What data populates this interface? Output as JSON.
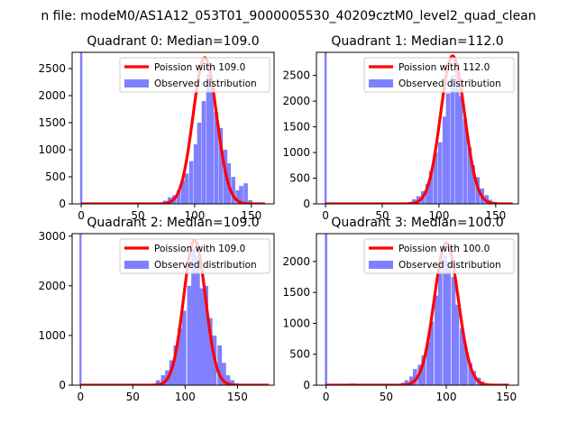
{
  "figure": {
    "suptitle": "n file: modeM0/AS1A12_053T01_9000005530_40209cztM0_level2_quad_clean"
  },
  "colors": {
    "bars": "#8080ff",
    "curve": "#ff0000",
    "axes": "#000000"
  },
  "chart_data": [
    {
      "type": "bar+line",
      "title": "Quadrant 0: Median=109.0",
      "median": 109.0,
      "legend": [
        "Poission with 109.0",
        "Observed distribution"
      ],
      "legend_loc": "upper right",
      "xlim": [
        -8,
        170
      ],
      "ylim": [
        0,
        2800
      ],
      "xticks": [
        0,
        50,
        100,
        150
      ],
      "yticks": [
        0,
        500,
        1000,
        1500,
        2000,
        2500
      ],
      "spike": {
        "x": 0,
        "value": 2800
      },
      "bar_width": 3.7,
      "bars": [
        [
          70,
          20
        ],
        [
          74,
          60
        ],
        [
          78,
          120
        ],
        [
          82,
          160
        ],
        [
          86,
          250
        ],
        [
          90,
          430
        ],
        [
          93,
          560
        ],
        [
          97,
          790
        ],
        [
          101,
          1100
        ],
        [
          104,
          1500
        ],
        [
          108,
          1900
        ],
        [
          112,
          2400
        ],
        [
          115,
          2200
        ],
        [
          119,
          1700
        ],
        [
          123,
          1400
        ],
        [
          127,
          1000
        ],
        [
          130,
          750
        ],
        [
          134,
          500
        ],
        [
          138,
          250
        ],
        [
          141,
          330
        ],
        [
          145,
          380
        ],
        [
          149,
          70
        ],
        [
          152,
          20
        ],
        [
          156,
          8
        ]
      ],
      "poisson_mean": 109.0,
      "poisson_peak": 2700,
      "poisson_sigma": 10.4,
      "poisson_range": [
        0,
        162
      ]
    },
    {
      "type": "bar+line",
      "title": "Quadrant 1: Median=112.0",
      "median": 112.0,
      "legend": [
        "Poission with 112.0",
        "Observed distribution"
      ],
      "legend_loc": "upper right",
      "xlim": [
        -8,
        170
      ],
      "ylim": [
        0,
        2950
      ],
      "xticks": [
        0,
        50,
        100,
        150
      ],
      "yticks": [
        0,
        500,
        1000,
        1500,
        2000,
        2500
      ],
      "spike": {
        "x": 0,
        "value": 2950
      },
      "bar_width": 3.7,
      "bars": [
        [
          71,
          15
        ],
        [
          75,
          40
        ],
        [
          78,
          90
        ],
        [
          82,
          150
        ],
        [
          86,
          250
        ],
        [
          90,
          390
        ],
        [
          93,
          640
        ],
        [
          97,
          1000
        ],
        [
          101,
          1200
        ],
        [
          105,
          1700
        ],
        [
          108,
          2150
        ],
        [
          112,
          2500
        ],
        [
          116,
          2750
        ],
        [
          119,
          2100
        ],
        [
          123,
          1650
        ],
        [
          127,
          1100
        ],
        [
          130,
          750
        ],
        [
          134,
          520
        ],
        [
          138,
          300
        ],
        [
          142,
          170
        ],
        [
          145,
          80
        ],
        [
          149,
          40
        ],
        [
          153,
          15
        ]
      ],
      "poisson_mean": 112.0,
      "poisson_peak": 2880,
      "poisson_sigma": 10.6,
      "poisson_range": [
        0,
        165
      ]
    },
    {
      "type": "bar+line",
      "title": "Quadrant 2: Median=109.0",
      "median": 109.0,
      "legend": [
        "Poission with 109.0",
        "Observed distribution"
      ],
      "legend_loc": "upper right",
      "xlim": [
        -8,
        185
      ],
      "ylim": [
        0,
        3050
      ],
      "xticks": [
        0,
        50,
        100,
        150
      ],
      "yticks": [
        0,
        1000,
        2000,
        3000
      ],
      "spike": {
        "x": 0,
        "value": 3050
      },
      "bar_width": 4.2,
      "bars": [
        [
          70,
          30
        ],
        [
          74,
          100
        ],
        [
          79,
          200
        ],
        [
          83,
          300
        ],
        [
          87,
          500
        ],
        [
          91,
          800
        ],
        [
          95,
          1150
        ],
        [
          99,
          1500
        ],
        [
          104,
          2000
        ],
        [
          108,
          2750
        ],
        [
          112,
          2600
        ],
        [
          116,
          1950
        ],
        [
          120,
          2000
        ],
        [
          124,
          1350
        ],
        [
          128,
          1000
        ],
        [
          133,
          800
        ],
        [
          137,
          450
        ],
        [
          141,
          200
        ],
        [
          145,
          100
        ],
        [
          149,
          40
        ],
        [
          153,
          20
        ]
      ],
      "poisson_mean": 109.0,
      "poisson_peak": 2920,
      "poisson_sigma": 10.4,
      "poisson_range": [
        0,
        180
      ]
    },
    {
      "type": "bar+line",
      "title": "Quadrant 3: Median=100.0",
      "median": 100.0,
      "legend": [
        "Poission with 100.0",
        "Observed distribution"
      ],
      "legend_loc": "upper right",
      "xlim": [
        -8,
        160
      ],
      "ylim": [
        0,
        2450
      ],
      "xticks": [
        0,
        50,
        100,
        150
      ],
      "yticks": [
        0,
        500,
        1000,
        1500,
        2000
      ],
      "spike": {
        "x": 0,
        "value": 2450
      },
      "bar_width": 3.5,
      "bars": [
        [
          22,
          30
        ],
        [
          25,
          20
        ],
        [
          60,
          15
        ],
        [
          64,
          40
        ],
        [
          67,
          80
        ],
        [
          71,
          140
        ],
        [
          74,
          260
        ],
        [
          78,
          330
        ],
        [
          81,
          480
        ],
        [
          85,
          700
        ],
        [
          88,
          1030
        ],
        [
          92,
          1450
        ],
        [
          95,
          1900
        ],
        [
          99,
          2100
        ],
        [
          102,
          2000
        ],
        [
          106,
          1750
        ],
        [
          109,
          1300
        ],
        [
          113,
          920
        ],
        [
          116,
          620
        ],
        [
          120,
          360
        ],
        [
          123,
          230
        ],
        [
          127,
          120
        ],
        [
          130,
          60
        ],
        [
          134,
          30
        ],
        [
          137,
          15
        ]
      ],
      "poisson_mean": 100.0,
      "poisson_peak": 2300,
      "poisson_sigma": 10.0,
      "poisson_range": [
        0,
        152
      ]
    }
  ]
}
